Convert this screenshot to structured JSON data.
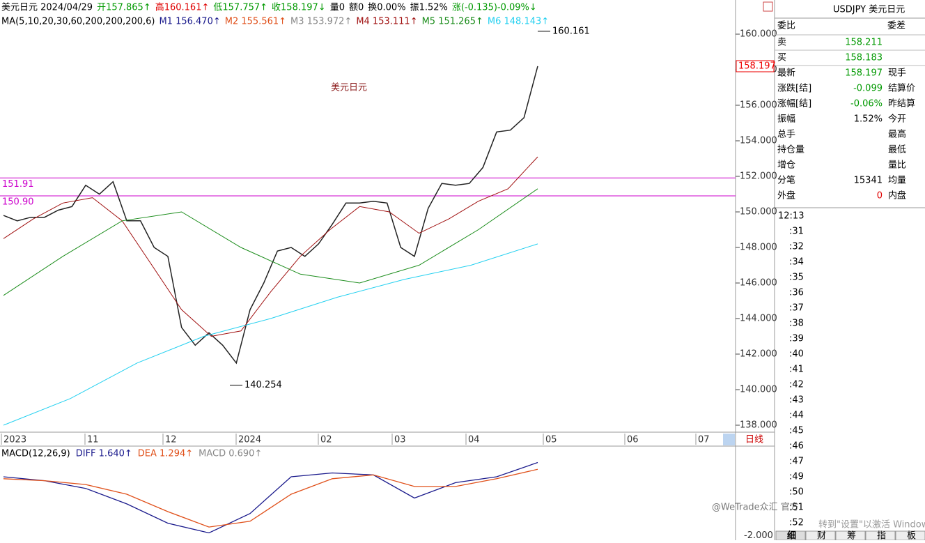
{
  "header": {
    "parts": [
      {
        "text": "美元日元 2024/04/29",
        "color": "#000"
      },
      {
        "text": "开157.865↑",
        "color": "#009900"
      },
      {
        "text": "高160.161↑",
        "color": "#e00000"
      },
      {
        "text": "低157.757↑",
        "color": "#009900"
      },
      {
        "text": "收158.197↓",
        "color": "#009900"
      },
      {
        "text": "量0",
        "color": "#000"
      },
      {
        "text": "额0",
        "color": "#000"
      },
      {
        "text": "换0.00%",
        "color": "#000"
      },
      {
        "text": "振1.52%",
        "color": "#000"
      },
      {
        "text": "涨(-0.135)-0.09%↓",
        "color": "#009900"
      }
    ]
  },
  "ma_legend": [
    {
      "text": "MA(5,10,20,30,60,200,200,200,6)",
      "color": "#000"
    },
    {
      "text": "M1 156.470↑",
      "color": "#1a1a8c"
    },
    {
      "text": "M2 155.561↑",
      "color": "#e0501a"
    },
    {
      "text": "M3 153.972↑",
      "color": "#888888"
    },
    {
      "text": "M4 153.111↑",
      "color": "#a01010"
    },
    {
      "text": "M5 151.265↑",
      "color": "#1a8c1a"
    },
    {
      "text": "M6 148.143↑",
      "color": "#22d0f0"
    }
  ],
  "price_chart": {
    "type": "line",
    "title": "美元日元",
    "ylim": [
      138,
      160
    ],
    "yticks": [
      {
        "value": 138,
        "label": "138.000"
      },
      {
        "value": 140,
        "label": "140.000"
      },
      {
        "value": 142,
        "label": "142.000"
      },
      {
        "value": 144,
        "label": "144.000"
      },
      {
        "value": 146,
        "label": "146.000"
      },
      {
        "value": 148,
        "label": "148.000"
      },
      {
        "value": 150,
        "label": "150.000"
      },
      {
        "value": 152,
        "label": "152.000"
      },
      {
        "value": 154,
        "label": "154.000"
      },
      {
        "value": 156,
        "label": "156.000"
      },
      {
        "value": 158,
        "label": "158.000"
      },
      {
        "value": 160,
        "label": "160.000"
      }
    ],
    "last_price": {
      "value": 158.197,
      "label": "158.197"
    },
    "high": {
      "value": 160.161,
      "label": "160.161"
    },
    "low": {
      "value": 140.254,
      "label": "140.254"
    },
    "levels": [
      {
        "value": 151.91,
        "label": "151.91"
      },
      {
        "value": 150.9,
        "label": "150.90"
      }
    ],
    "x_labels": [
      "2023",
      "11",
      "12",
      "2024",
      "02",
      "03",
      "04",
      "05",
      "06",
      "07"
    ],
    "period": "日线",
    "series": [
      {
        "name": "close",
        "color": "#222222",
        "values": [
          149.8,
          149.5,
          149.7,
          149.7,
          150.1,
          150.3,
          151.5,
          151.0,
          151.7,
          149.5,
          149.5,
          148.0,
          147.5,
          143.5,
          142.5,
          143.2,
          142.5,
          141.5,
          144.5,
          146.0,
          147.8,
          148.0,
          147.5,
          148.2,
          149.3,
          150.5,
          150.5,
          150.6,
          150.5,
          148.0,
          147.5,
          150.2,
          151.6,
          151.5,
          151.6,
          152.5,
          154.5,
          154.6,
          155.3,
          158.2
        ]
      },
      {
        "name": "M4",
        "color": "#a01010",
        "values": [
          148.5,
          149.6,
          150.5,
          150.8,
          149.5,
          147.0,
          144.5,
          143.0,
          143.3,
          145.5,
          147.5,
          149.0,
          150.3,
          150.0,
          148.8,
          149.6,
          150.6,
          151.3,
          153.1
        ]
      },
      {
        "name": "M5",
        "color": "#1a8c1a",
        "values": [
          145.3,
          147.5,
          149.5,
          150.0,
          148.0,
          146.5,
          146.0,
          147.0,
          149.0,
          151.3
        ]
      },
      {
        "name": "M6",
        "color": "#22d0f0",
        "values": [
          138.0,
          139.5,
          141.5,
          143.0,
          144.0,
          145.2,
          146.2,
          147.0,
          148.2
        ]
      }
    ]
  },
  "macd": {
    "label": "MACD(12,26,9)",
    "diff_label": "DIFF 1.640↑",
    "dea_label": "DEA 1.294↑",
    "macd_label": "MACD 0.690↑",
    "ylim": [
      -2.2,
      2.2
    ],
    "yticks": [
      {
        "value": -2,
        "label": "-2.000"
      }
    ],
    "series": [
      {
        "name": "DIFF",
        "color": "#1a1a8c",
        "values": [
          0.9,
          0.7,
          0.3,
          -0.5,
          -1.5,
          -2.0,
          -1.0,
          0.9,
          1.1,
          1.0,
          -0.2,
          0.6,
          0.9,
          1.64
        ]
      },
      {
        "name": "DEA",
        "color": "#e0501a",
        "values": [
          0.8,
          0.7,
          0.5,
          0.0,
          -0.9,
          -1.7,
          -1.4,
          0.0,
          0.8,
          1.0,
          0.4,
          0.4,
          0.8,
          1.29
        ]
      }
    ]
  },
  "quote": {
    "symbol": "USDJPY 美元日元",
    "head": [
      "委比",
      "委差"
    ],
    "rows": [
      [
        "卖",
        "158.211",
        ""
      ],
      [
        "买",
        "158.183",
        ""
      ],
      [
        "最新",
        "158.197",
        "现手"
      ],
      [
        "涨跌[结]",
        "-0.099",
        "结算价"
      ],
      [
        "涨幅[结]",
        "-0.06%",
        "昨结算"
      ],
      [
        "振幅",
        "1.52%",
        "今开"
      ],
      [
        "总手",
        "",
        "最高"
      ],
      [
        "持仓量",
        "",
        "最低"
      ],
      [
        "增仓",
        "",
        "量比"
      ],
      [
        "分笔",
        "15341",
        "均量"
      ],
      [
        "外盘",
        "0",
        "内盘"
      ]
    ],
    "value_colors": [
      "#009900",
      "#009900",
      "#009900",
      "#009900",
      "#009900",
      "#000",
      "#000",
      "#000",
      "#000",
      "#000",
      "#e00000"
    ]
  },
  "ticks": {
    "first": "12:13",
    "items": [
      ":31",
      ":32",
      ":34",
      ":35",
      ":36",
      ":37",
      ":38",
      ":39",
      ":40",
      ":41",
      ":42",
      ":43",
      ":44",
      ":45",
      ":46",
      ":47",
      ":49",
      ":50",
      ":51",
      ":52"
    ]
  },
  "tabs": [
    "细",
    "财",
    "筹",
    "指",
    "板"
  ],
  "watermark": "@WeTrade众汇 官方",
  "activation": "转到\"设置\"以激活 Windows"
}
